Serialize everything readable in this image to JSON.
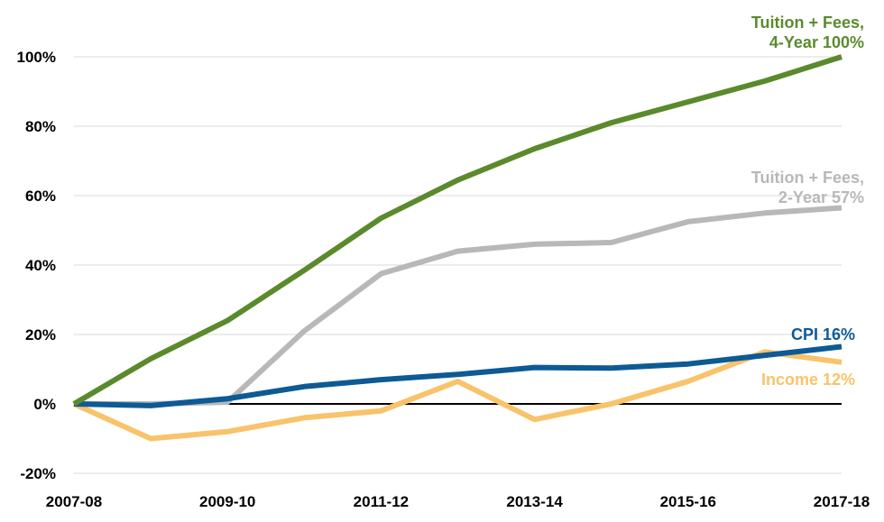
{
  "chart_data": {
    "type": "line",
    "x": [
      "2007-08",
      "2008-09",
      "2009-10",
      "2010-11",
      "2011-12",
      "2012-13",
      "2013-14",
      "2014-15",
      "2015-16",
      "2016-17",
      "2017-18"
    ],
    "x_tick_labels": [
      "2007-08",
      "2009-10",
      "2011-12",
      "2013-14",
      "2015-16",
      "2017-18"
    ],
    "ylim": [
      -20,
      100
    ],
    "y_ticks": [
      -20,
      0,
      20,
      40,
      60,
      80,
      100
    ],
    "y_tick_labels": [
      "-20%",
      "0%",
      "20%",
      "40%",
      "60%",
      "80%",
      "100%"
    ],
    "grid": true,
    "series": [
      {
        "key": "tuition4",
        "label_lines": [
          "Tuition + Fees,",
          "4-Year 100%"
        ],
        "color": "#5b8a2c",
        "values": [
          0,
          13,
          24,
          38.5,
          53.5,
          64.5,
          73.5,
          81,
          87,
          93,
          100
        ]
      },
      {
        "key": "tuition2",
        "label_lines": [
          "Tuition + Fees,",
          "2-Year 57%"
        ],
        "color": "#b8b8b8",
        "values": [
          0,
          0,
          0.5,
          21,
          37.5,
          44,
          46,
          46.5,
          52.5,
          55,
          56.5
        ]
      },
      {
        "key": "cpi",
        "label_lines": [
          "CPI 16%"
        ],
        "color": "#0d5a95",
        "values": [
          0,
          -0.5,
          1.5,
          5,
          7,
          8.5,
          10.5,
          10.3,
          11.5,
          14,
          16.5
        ]
      },
      {
        "key": "income",
        "label_lines": [
          "Income 12%"
        ],
        "color": "#f8c36a",
        "values": [
          0,
          -10,
          -8,
          -4,
          -2,
          6.5,
          -4.5,
          0,
          6.5,
          15,
          12
        ]
      }
    ]
  }
}
